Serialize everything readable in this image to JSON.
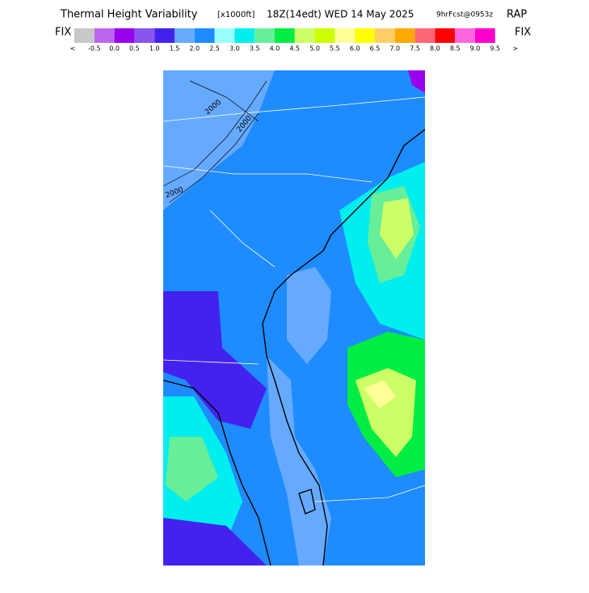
{
  "header": {
    "title": "Thermal Height Variability",
    "units": "[x1000ft]",
    "time": "18Z(14edt) WED 14 May 2025",
    "forecast": "9hrFcst@0953z",
    "model": "RAP"
  },
  "legend": {
    "left_label": "FIX",
    "right_label": "FIX",
    "colors": [
      "#c8c8c8",
      "#bb66ee",
      "#9900ee",
      "#8855ee",
      "#4422ee",
      "#66aaff",
      "#1e8cff",
      "#99ffff",
      "#00eeee",
      "#66ee99",
      "#00ee44",
      "#ccff66",
      "#ccff00",
      "#ffff99",
      "#ffff00",
      "#ffcc66",
      "#ffaa00",
      "#ff6677",
      "#ff0000",
      "#ff66dd",
      "#ff00cc"
    ],
    "labels": [
      "<",
      "-0.5",
      "0.0",
      "0.5",
      "1.0",
      "1.5",
      "2.0",
      "2.5",
      "3.0",
      "3.5",
      "4.0",
      "4.5",
      "5.0",
      "5.5",
      "6.0",
      "6.5",
      "7.0",
      "7.5",
      "8.0",
      "8.5",
      "9.0",
      "9.5",
      ">"
    ]
  },
  "map": {
    "contour_labels": [
      "2000",
      "2000",
      "2000"
    ]
  }
}
